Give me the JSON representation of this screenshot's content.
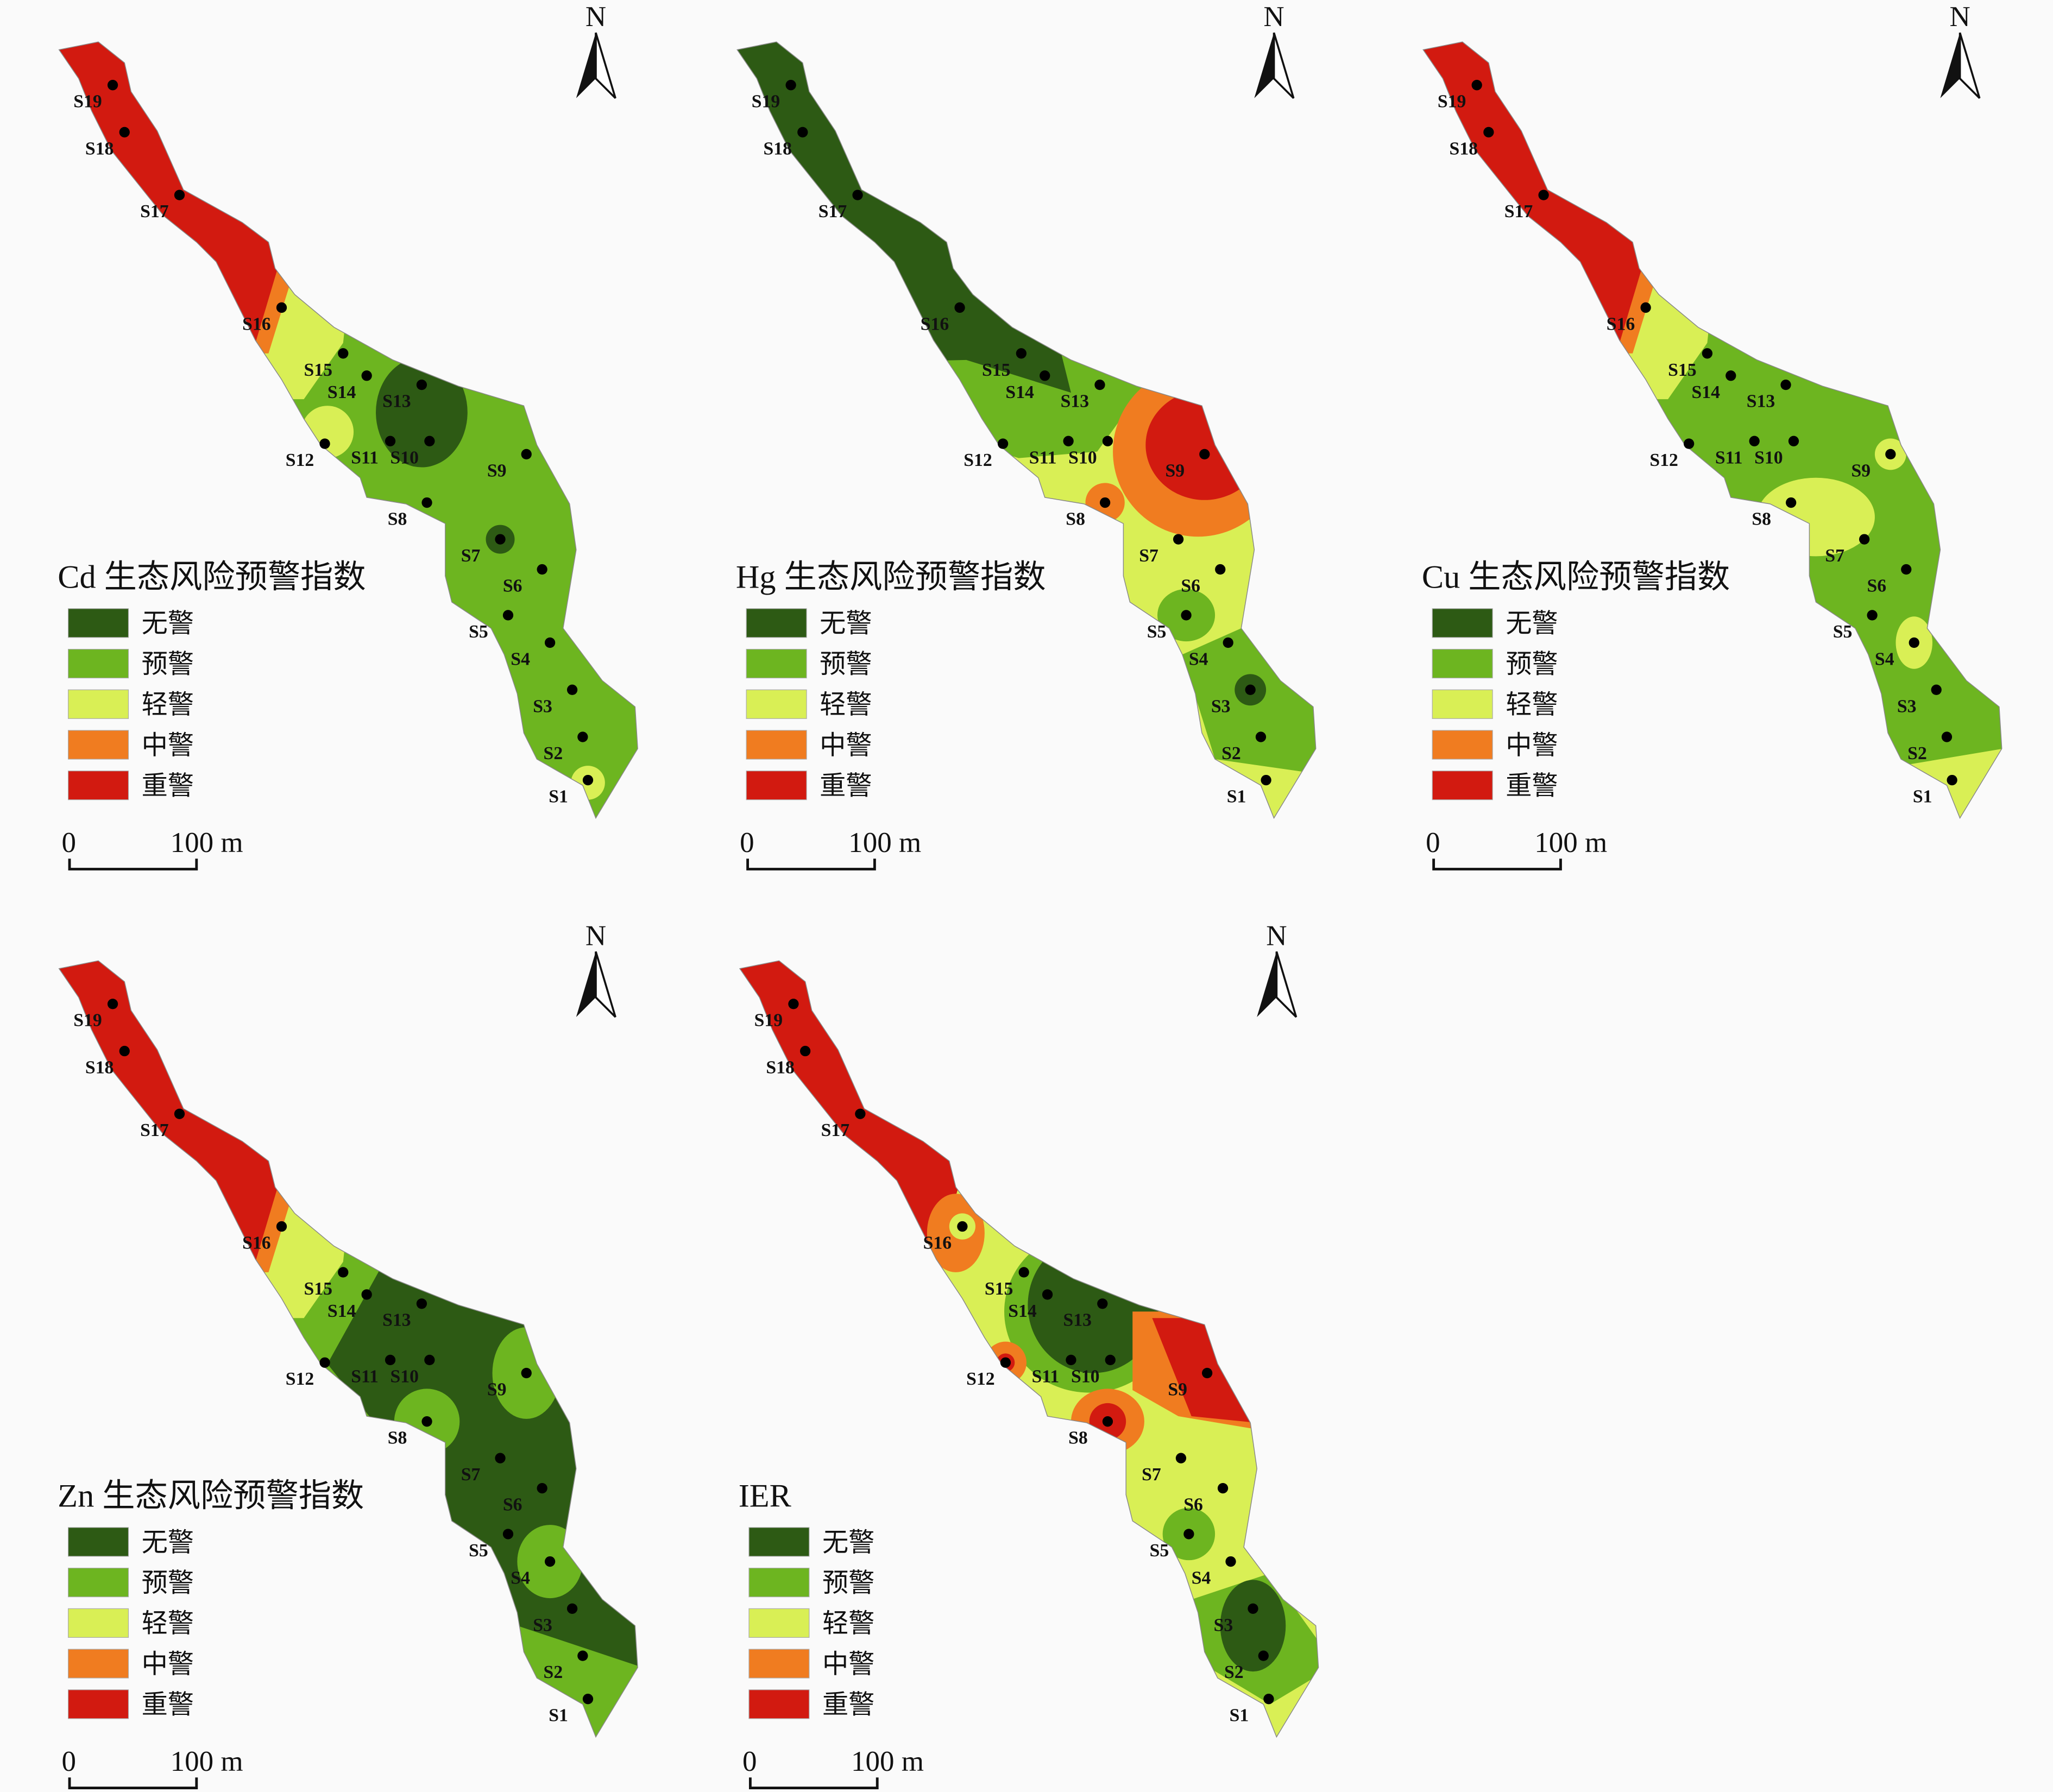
{
  "panels": [
    {
      "title": "Cd 生态风险预警指数"
    },
    {
      "title": "Hg 生态风险预警指数"
    },
    {
      "title": "Cu 生态风险预警指数"
    },
    {
      "title": "Zn 生态风险预警指数"
    },
    {
      "title": "IER"
    }
  ],
  "legend": [
    "无警",
    "预警",
    "轻警",
    "中警",
    "重警"
  ],
  "sites": [
    "S1",
    "S2",
    "S3",
    "S4",
    "S5",
    "S6",
    "S7",
    "S8",
    "S9",
    "S10",
    "S11",
    "S12",
    "S13",
    "S14",
    "S15",
    "S16",
    "S17",
    "S18",
    "S19"
  ],
  "scale": {
    "start": "0",
    "end": "100 m"
  },
  "north": "N"
}
